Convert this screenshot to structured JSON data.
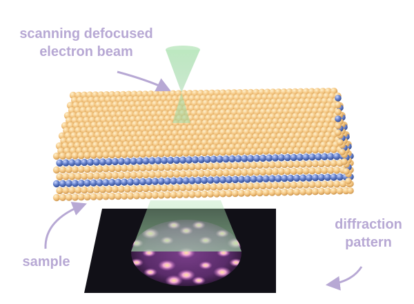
{
  "labels": {
    "beam": [
      "scanning defocused",
      "electron beam"
    ],
    "sample": "sample",
    "pattern": [
      "diffraction",
      "pattern"
    ]
  },
  "colors": {
    "label": "#b7a8d4",
    "atom_gold": "#f3c47f",
    "atom_gold_dark": "#c9924b",
    "atom_blue": "#5b78c6",
    "atom_blue_dark": "#33498a",
    "beam_fill": "#9fd8a4",
    "screen": "#111017",
    "pattern_glow": "#e79ae9",
    "pattern_hot": "#ffe08a"
  },
  "atom_layers": [
    "gold",
    "blue",
    "gold",
    "gold",
    "blue",
    "gold",
    "gold"
  ]
}
